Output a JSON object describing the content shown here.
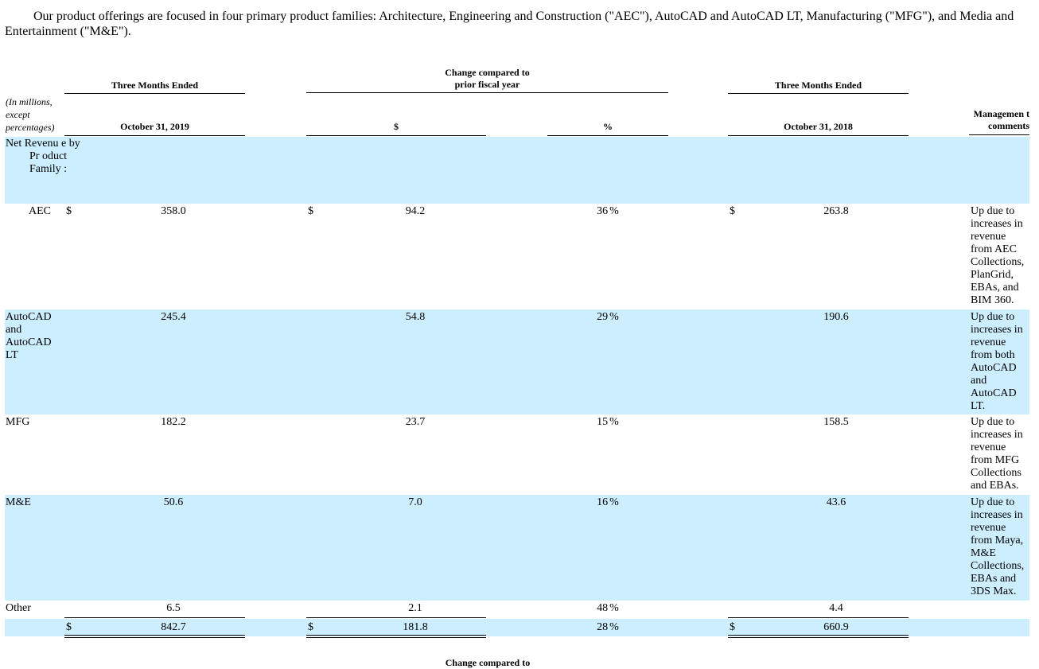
{
  "intro": "Our product offerings are focused in four primary product families: Architecture, Engineering and Construction (\"AEC\"), AutoCAD and AutoCAD LT, Manufacturing (\"MFG\"), and Media and Entertainment (\"M&E\").",
  "header": {
    "group_left": "Three Months Ended",
    "group_change": "Change compared to prior fiscal year",
    "group_right": "Three Months Ended",
    "units": "(In millions, except percentages)",
    "col_current": "October 31, 2019",
    "col_change_dollar": "$",
    "col_change_pct": "%",
    "col_prior": "October 31, 2018",
    "col_comments": "Managemen t comments"
  },
  "section_label": "Net Revenu e by Pr oduct Family :",
  "currency": "$",
  "rows": [
    {
      "label": "AEC",
      "current": "358.0",
      "change": "94.2",
      "pct": "36",
      "prior": "263.8",
      "comment": "Up due to increases in revenue from AEC Collections, PlanGrid, EBAs, and BIM 360."
    },
    {
      "label": "AutoCAD and AutoCAD LT",
      "current": "245.4",
      "change": "54.8",
      "pct": "29",
      "prior": "190.6",
      "comment": "Up due to increases in revenue from both AutoCAD and AutoCAD LT."
    },
    {
      "label": "MFG",
      "current": "182.2",
      "change": "23.7",
      "pct": "15",
      "prior": "158.5",
      "comment": "Up due to increases in revenue from MFG Collections and EBAs."
    },
    {
      "label": "M&E",
      "current": "50.6",
      "change": "7.0",
      "pct": "16",
      "prior": "43.6",
      "comment": "Up due to increases in revenue from Maya, M&E Collections, EBAs and 3DS Max."
    },
    {
      "label": "Other",
      "current": "6.5",
      "change": "2.1",
      "pct": "48",
      "prior": "4.4",
      "comment": ""
    }
  ],
  "total": {
    "current": "842.7",
    "change": "181.8",
    "pct": "28",
    "prior": "660.9"
  },
  "pct_sign": "%",
  "next_header_partial": "Change compared to"
}
